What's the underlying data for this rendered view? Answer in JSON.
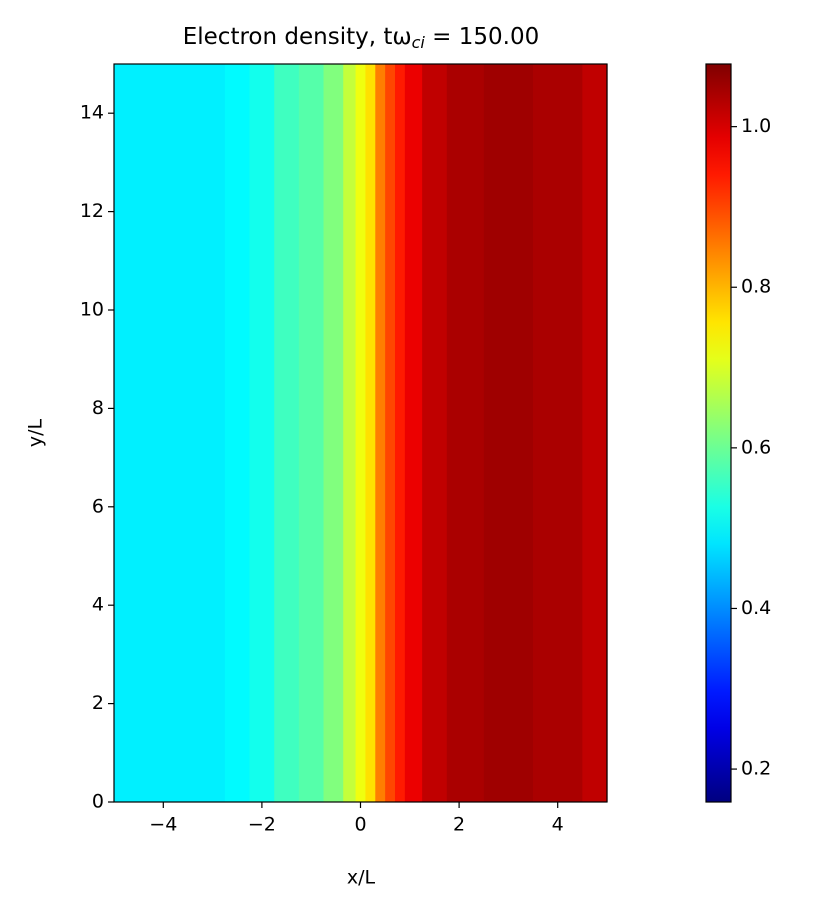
{
  "chart_data": {
    "type": "heatmap",
    "title": {
      "main": "Electron density, tω",
      "subscript": "ci",
      "rest": " = 150.00"
    },
    "x_label": "x/L",
    "y_label": "y/L",
    "x": [
      -5,
      -4,
      -3,
      -2.5,
      -2,
      -1.5,
      -1,
      -0.5,
      -0.2,
      0,
      0.2,
      0.4,
      0.6,
      0.8,
      1,
      1.5,
      2,
      3,
      4,
      5
    ],
    "values": [
      0.49,
      0.49,
      0.49,
      0.5,
      0.52,
      0.56,
      0.58,
      0.62,
      0.68,
      0.72,
      0.76,
      0.85,
      0.9,
      0.94,
      0.98,
      1.02,
      1.04,
      1.05,
      1.04,
      1.02
    ],
    "xlim": [
      -5,
      5
    ],
    "xticks": [
      {
        "value": -4,
        "label": "−4"
      },
      {
        "value": -2,
        "label": "−2"
      },
      0,
      2,
      4
    ],
    "ylim": [
      0,
      15
    ],
    "yticks": [
      0,
      2,
      4,
      6,
      8,
      10,
      12,
      14
    ],
    "colormap": "jet",
    "clim": [
      0.159,
      1.078
    ],
    "cticks": [
      0.2,
      0.4,
      0.6,
      0.8,
      {
        "value": 1,
        "label": "1.0"
      }
    ]
  }
}
